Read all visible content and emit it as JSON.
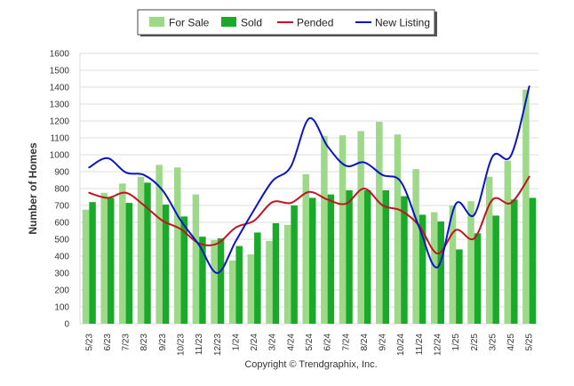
{
  "chart_data": {
    "type": "bar",
    "title": "",
    "xlabel": "",
    "ylabel": "Number of Homes",
    "ylim": [
      0,
      1600
    ],
    "ytick_step": 100,
    "grid": true,
    "legend_position": "top-center",
    "copyright": "Copyright © Trendgraphix, Inc.",
    "categories": [
      "5/23",
      "6/23",
      "7/23",
      "8/23",
      "9/23",
      "10/23",
      "11/23",
      "12/23",
      "1/24",
      "2/24",
      "3/24",
      "4/24",
      "5/24",
      "6/24",
      "7/24",
      "8/24",
      "9/24",
      "10/24",
      "11/24",
      "12/24",
      "1/25",
      "2/25",
      "3/25",
      "4/25",
      "5/25"
    ],
    "series": [
      {
        "name": "For Sale",
        "kind": "bar",
        "color": "#9ed98a",
        "values": [
          675,
          775,
          830,
          870,
          940,
          925,
          765,
          495,
          375,
          410,
          490,
          585,
          885,
          1110,
          1115,
          1140,
          1195,
          1120,
          915,
          660,
          700,
          725,
          870,
          965,
          1385
        ]
      },
      {
        "name": "Sold",
        "kind": "bar",
        "color": "#1aaa2a",
        "values": [
          720,
          745,
          715,
          835,
          705,
          635,
          515,
          505,
          460,
          540,
          595,
          700,
          745,
          765,
          790,
          790,
          790,
          755,
          645,
          605,
          440,
          535,
          640,
          735,
          745
        ]
      },
      {
        "name": "Pended",
        "kind": "line",
        "color": "#c0141e",
        "values": [
          775,
          745,
          775,
          700,
          610,
          560,
          475,
          475,
          570,
          610,
          720,
          715,
          780,
          735,
          710,
          800,
          700,
          670,
          580,
          415,
          555,
          505,
          735,
          715,
          870
        ]
      },
      {
        "name": "New Listing",
        "kind": "line",
        "color": "#0a14c8",
        "values": [
          925,
          980,
          895,
          880,
          790,
          610,
          465,
          300,
          490,
          675,
          845,
          930,
          1215,
          1050,
          935,
          955,
          880,
          840,
          570,
          335,
          710,
          645,
          990,
          995,
          1405
        ]
      }
    ]
  }
}
